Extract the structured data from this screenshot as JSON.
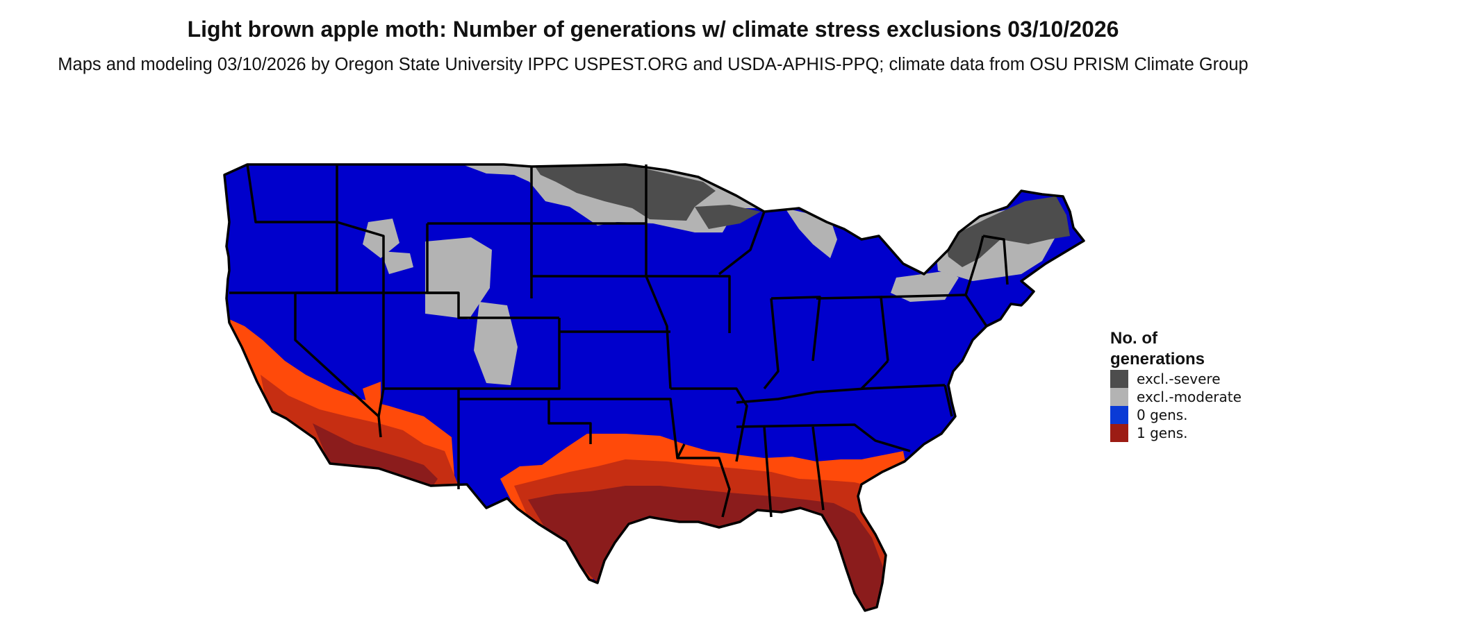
{
  "title": "Light brown apple moth: Number of generations w/ climate stress exclusions 03/10/2026",
  "subtitle": "Maps and modeling 03/10/2026 by Oregon State University IPPC USPEST.ORG and USDA-APHIS-PPQ; climate data from OSU PRISM Climate Group",
  "legend": {
    "title": "No. of generations",
    "items": [
      {
        "label": "excl.-severe",
        "color": "#4d4d4d"
      },
      {
        "label": "excl.-moderate",
        "color": "#b3b3b3"
      },
      {
        "label": "0 gens.",
        "color": "#0a3ad6"
      },
      {
        "label": "1 gens.",
        "color": "#9c1c14"
      }
    ]
  },
  "map": {
    "region": "contiguous-united-states",
    "colors": {
      "zero_gens": "#0000cc",
      "excl_moderate": "#b3b3b3",
      "excl_severe": "#4d4d4d",
      "one_gen": "#8b1c1c",
      "transition_orange": "#ff4a0a",
      "transition_red": "#c62e12",
      "state_border": "#000000"
    }
  }
}
